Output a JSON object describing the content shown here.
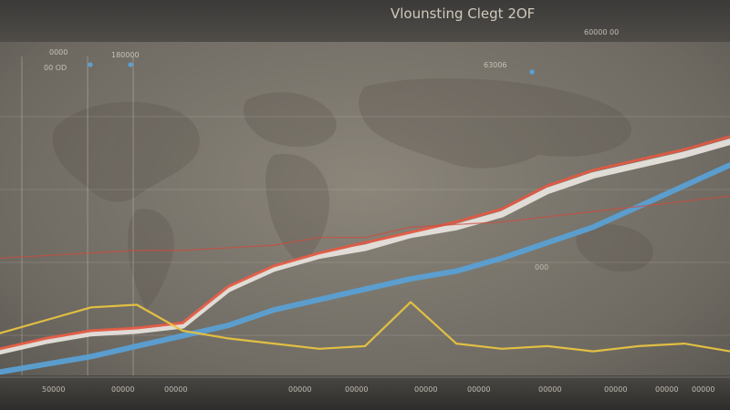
{
  "chart_data": {
    "type": "line",
    "title": "Vlounsting Clegt 2OF",
    "top_labels": [
      "0000",
      "00 OD",
      "180000",
      "60000 00",
      "63006"
    ],
    "bottom_ticks": [
      "50000",
      "00000",
      "00000",
      "00000",
      "00000",
      "00000",
      "00000",
      "00000",
      "00000",
      "00000",
      "00000"
    ],
    "annotations": [
      "000"
    ],
    "x": [
      0,
      1,
      2,
      3,
      4,
      5,
      6,
      7,
      8,
      9,
      10,
      11,
      12,
      13,
      14,
      15,
      16
    ],
    "ylim": [
      0,
      100
    ],
    "series": [
      {
        "color": "#e6e2dc",
        "values": [
          10,
          14,
          17,
          18,
          20,
          34,
          42,
          47,
          50,
          55,
          58,
          63,
          72,
          78,
          82,
          86,
          91
        ]
      },
      {
        "color": "#e05a43",
        "values": [
          11,
          15,
          18,
          19,
          21,
          35,
          43,
          48,
          52,
          56,
          60,
          65,
          74,
          80,
          84,
          88,
          93
        ]
      },
      {
        "color": "#5aa0d4",
        "values": [
          2,
          5,
          8,
          12,
          16,
          20,
          26,
          30,
          34,
          38,
          41,
          46,
          52,
          58,
          66,
          74,
          82
        ]
      },
      {
        "color": "#e8c341",
        "values": [
          17,
          22,
          27,
          28,
          18,
          15,
          13,
          11,
          12,
          29,
          13,
          11,
          12,
          10,
          12,
          13,
          10
        ]
      },
      {
        "color": "#d04a3a",
        "values": [
          46,
          47,
          48,
          49,
          49,
          50,
          51,
          54,
          54,
          58,
          59,
          60,
          62,
          64,
          66,
          68,
          70
        ]
      }
    ]
  }
}
